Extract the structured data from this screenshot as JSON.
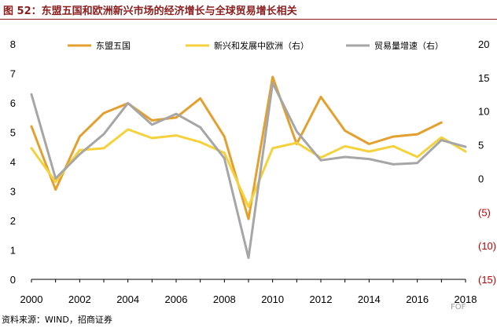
{
  "title": "图 52：东盟五国和欧洲新兴市场的经济增长与全球贸易增长相关",
  "source": "资料来源：WIND，招商证券",
  "watermark": "FOF",
  "chart_data": {
    "type": "line",
    "x": [
      2000,
      2001,
      2002,
      2003,
      2004,
      2005,
      2006,
      2007,
      2008,
      2009,
      2010,
      2011,
      2012,
      2013,
      2014,
      2015,
      2016,
      2017,
      2018
    ],
    "series": [
      {
        "name": "东盟五国",
        "axis": "left",
        "color": "#E3A02F",
        "values": [
          5.2,
          3.05,
          4.85,
          5.65,
          5.98,
          5.4,
          5.5,
          6.15,
          4.85,
          2.05,
          6.88,
          4.6,
          6.2,
          5.05,
          4.6,
          4.85,
          4.93,
          5.33,
          null
        ]
      },
      {
        "name": "新兴和发展中欧洲（右）",
        "axis": "right",
        "color": "#F5D23C",
        "values": [
          4.5,
          -0.5,
          4.2,
          4.5,
          7.3,
          6.0,
          6.4,
          5.4,
          3.8,
          -4.2,
          4.5,
          5.3,
          3.1,
          4.8,
          4.0,
          4.8,
          3.2,
          6.1,
          4.0
        ]
      },
      {
        "name": "贸易量增速（右）",
        "axis": "right",
        "color": "#A6A6A6",
        "values": [
          12.5,
          0.0,
          3.6,
          6.6,
          11.2,
          8.0,
          9.6,
          7.6,
          3.0,
          -11.8,
          14.2,
          7.0,
          2.7,
          3.2,
          2.9,
          2.1,
          2.3,
          5.7,
          4.7
        ]
      }
    ],
    "xticks": [
      "2000",
      "2002",
      "2004",
      "2006",
      "2008",
      "2010",
      "2012",
      "2014",
      "2016",
      "2018"
    ],
    "ylim_left": [
      0,
      8
    ],
    "ylim_right": [
      -15,
      20
    ],
    "yticks_left": [
      "0",
      "1",
      "2",
      "3",
      "4",
      "5",
      "6",
      "7",
      "8"
    ],
    "yticks_right": [
      "(15)",
      "(10)",
      "(5)",
      "0",
      "5",
      "10",
      "15",
      "20"
    ],
    "legend_position": "top",
    "grid": false
  }
}
